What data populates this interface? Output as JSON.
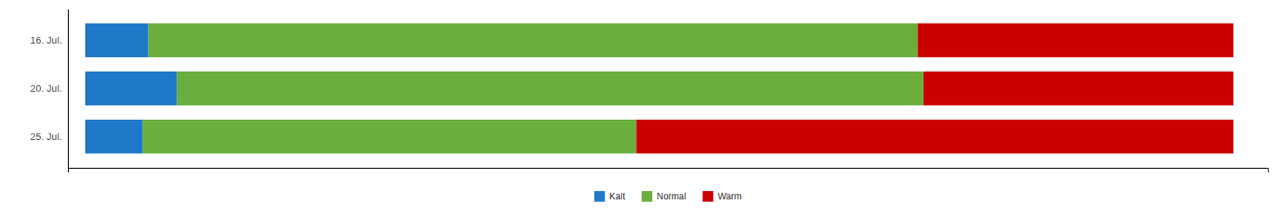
{
  "chart_data": {
    "type": "bar",
    "orientation": "horizontal",
    "stacked": true,
    "categories": [
      "16. Jul.",
      "20. Jul.",
      "25. Jul."
    ],
    "series": [
      {
        "name": "Kalt",
        "color": "#1F78C8",
        "values": [
          5.5,
          8,
          5
        ]
      },
      {
        "name": "Normal",
        "color": "#6AAF3D",
        "values": [
          67,
          65,
          43
        ]
      },
      {
        "name": "Warm",
        "color": "#CC0000",
        "values": [
          27.5,
          27,
          52
        ]
      }
    ],
    "xlim": [
      -1.5,
      103
    ],
    "xticks": [],
    "grid": false,
    "legend": "bottom",
    "tick_labels": "y"
  }
}
